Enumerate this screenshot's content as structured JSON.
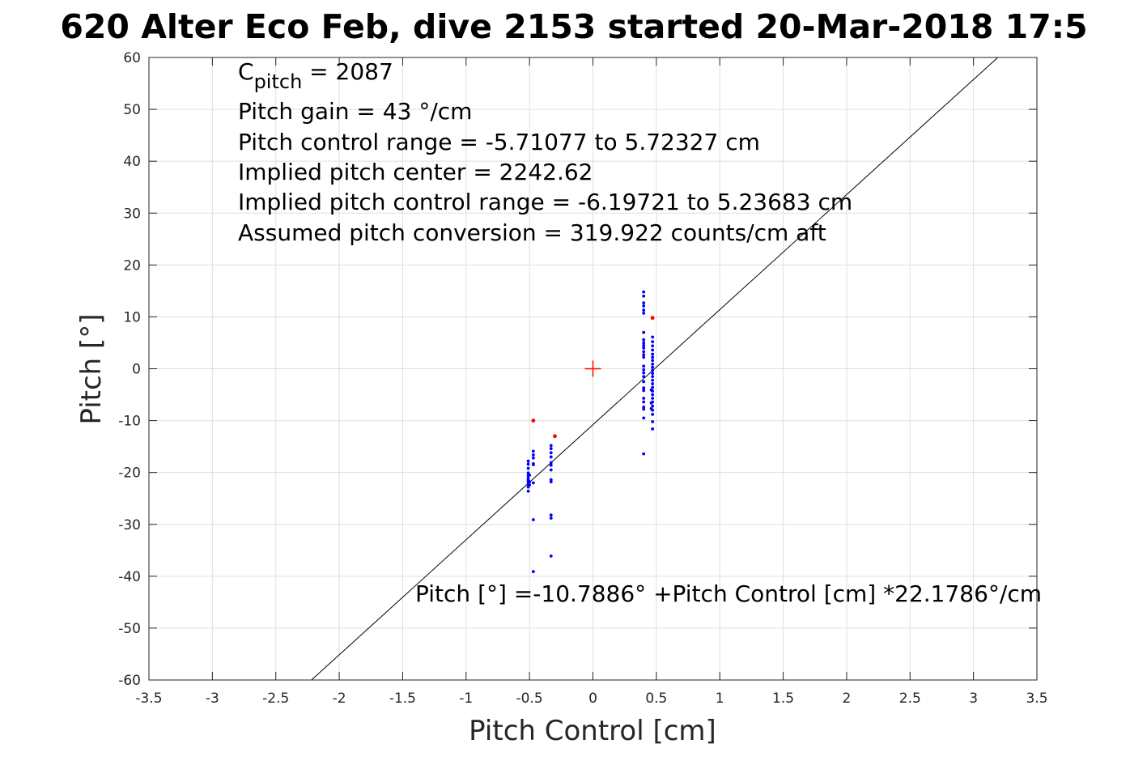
{
  "chart_data": {
    "type": "scatter",
    "title": "620 Alter Eco Feb, dive 2153 started 20-Mar-2018 17:5",
    "xlabel": "Pitch Control [cm]",
    "ylabel": "Pitch [°]",
    "xlim": [
      -3.5,
      3.5
    ],
    "ylim": [
      -60,
      60
    ],
    "grid": true,
    "xticks": [
      -3.5,
      -3,
      -2.5,
      -2,
      -1.5,
      -1,
      -0.5,
      0,
      0.5,
      1,
      1.5,
      2,
      2.5,
      3,
      3.5
    ],
    "yticks": [
      -60,
      -50,
      -40,
      -30,
      -20,
      -10,
      0,
      10,
      20,
      30,
      40,
      50,
      60
    ],
    "colors": {
      "data": "#0000ff",
      "outlier": "#ff0000",
      "fit": "#000000",
      "center": "#ff0000",
      "grid": "#dfdfdf"
    },
    "annotations": {
      "c_pitch_prefix": "C",
      "c_pitch_subscript": "pitch",
      "c_pitch_value": " = 2087",
      "lines": [
        "Pitch gain = 43 °/cm",
        "Pitch control range = -5.71077 to 5.72327 cm",
        "Implied pitch center = 2242.62",
        "Implied pitch control range = -6.19721 to 5.23683 cm",
        "Assumed pitch conversion = 319.922 counts/cm aft"
      ],
      "fit_equation": "Pitch [°] =-10.7886° +Pitch Control [cm] *22.1786°/cm"
    },
    "fit": {
      "intercept": -10.7886,
      "slope": 22.1786
    },
    "center_marker": {
      "x": 0,
      "y": 0
    },
    "series": [
      {
        "role": "data",
        "points": [
          [
            -0.51,
            -17.8
          ],
          [
            -0.51,
            -18.4
          ],
          [
            -0.51,
            -19.2
          ],
          [
            -0.51,
            -20.1
          ],
          [
            -0.51,
            -20.6
          ],
          [
            -0.51,
            -21.1
          ],
          [
            -0.51,
            -21.5
          ],
          [
            -0.51,
            -21.9
          ],
          [
            -0.51,
            -22.3
          ],
          [
            -0.51,
            -22.8
          ],
          [
            -0.51,
            -23.6
          ],
          [
            -0.5,
            -20.5
          ],
          [
            -0.5,
            -21.8
          ],
          [
            -0.5,
            -22.4
          ],
          [
            -0.47,
            -15.9
          ],
          [
            -0.47,
            -16.6
          ],
          [
            -0.47,
            -17.2
          ],
          [
            -0.47,
            -18.3
          ],
          [
            -0.47,
            -18.5
          ],
          [
            -0.47,
            -22.0
          ],
          [
            -0.47,
            -29.1
          ],
          [
            -0.47,
            -39.1
          ],
          [
            -0.33,
            -14.8
          ],
          [
            -0.33,
            -15.4
          ],
          [
            -0.33,
            -16.2
          ],
          [
            -0.33,
            -17.0
          ],
          [
            -0.33,
            -18.1
          ],
          [
            -0.33,
            -18.6
          ],
          [
            -0.33,
            -19.5
          ],
          [
            -0.33,
            -21.4
          ],
          [
            -0.33,
            -21.8
          ],
          [
            -0.33,
            -28.2
          ],
          [
            -0.33,
            -28.8
          ],
          [
            -0.33,
            -36.1
          ],
          [
            0.4,
            14.8
          ],
          [
            0.4,
            14.0
          ],
          [
            0.4,
            12.7
          ],
          [
            0.4,
            12.1
          ],
          [
            0.4,
            11.3
          ],
          [
            0.4,
            10.7
          ],
          [
            0.4,
            7.0
          ],
          [
            0.4,
            5.6
          ],
          [
            0.4,
            5.0
          ],
          [
            0.4,
            4.5
          ],
          [
            0.4,
            4.0
          ],
          [
            0.4,
            3.3
          ],
          [
            0.4,
            2.7
          ],
          [
            0.4,
            2.2
          ],
          [
            0.4,
            0.5
          ],
          [
            0.4,
            -0.2
          ],
          [
            0.4,
            -0.8
          ],
          [
            0.4,
            -1.5
          ],
          [
            0.4,
            -2.5
          ],
          [
            0.4,
            -3.7
          ],
          [
            0.4,
            -4.2
          ],
          [
            0.4,
            -5.7
          ],
          [
            0.4,
            -6.4
          ],
          [
            0.4,
            -7.4
          ],
          [
            0.4,
            -7.8
          ],
          [
            0.4,
            -9.5
          ],
          [
            0.4,
            -16.4
          ],
          [
            0.47,
            6.1
          ],
          [
            0.47,
            5.2
          ],
          [
            0.47,
            4.4
          ],
          [
            0.47,
            3.6
          ],
          [
            0.47,
            2.8
          ],
          [
            0.47,
            2.2
          ],
          [
            0.47,
            1.6
          ],
          [
            0.47,
            0.9
          ],
          [
            0.47,
            0.3
          ],
          [
            0.47,
            -0.3
          ],
          [
            0.47,
            -0.9
          ],
          [
            0.47,
            -1.5
          ],
          [
            0.47,
            -2.2
          ],
          [
            0.47,
            -2.9
          ],
          [
            0.47,
            -3.6
          ],
          [
            0.47,
            -4.3
          ],
          [
            0.47,
            -5.0
          ],
          [
            0.47,
            -5.7
          ],
          [
            0.47,
            -6.4
          ],
          [
            0.47,
            -7.2
          ],
          [
            0.47,
            -8.0
          ],
          [
            0.47,
            -8.8
          ],
          [
            0.47,
            -10.2
          ],
          [
            0.47,
            -11.6
          ],
          [
            0.46,
            -4.1
          ],
          [
            0.46,
            -6.6
          ],
          [
            0.46,
            -7.7
          ]
        ]
      },
      {
        "role": "outlier",
        "points": [
          [
            -0.47,
            -10.0
          ],
          [
            -0.3,
            -13.0
          ],
          [
            0.47,
            9.8
          ]
        ]
      }
    ]
  }
}
